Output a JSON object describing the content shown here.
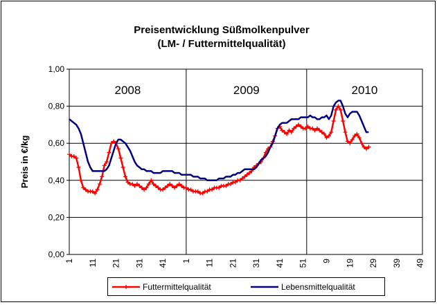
{
  "chart_data": {
    "type": "line",
    "title": "Preisentwicklung Süßmolkenpulver",
    "subtitle": "(LM- / Futtermittelqualität)",
    "y_label": "Preis in €/kg",
    "annotations": [
      "2008",
      "2009",
      "2010"
    ],
    "categories": [
      "1",
      null,
      null,
      null,
      null,
      null,
      null,
      null,
      null,
      null,
      "11",
      null,
      null,
      null,
      null,
      null,
      null,
      null,
      null,
      null,
      "21",
      null,
      null,
      null,
      null,
      null,
      null,
      null,
      null,
      null,
      "31",
      null,
      null,
      null,
      null,
      null,
      null,
      null,
      null,
      null,
      "41",
      null,
      null,
      null,
      null,
      null,
      null,
      null,
      null,
      null,
      "1",
      null,
      null,
      null,
      null,
      null,
      null,
      null,
      null,
      null,
      "11",
      null,
      null,
      null,
      null,
      null,
      null,
      null,
      null,
      null,
      "21",
      null,
      null,
      null,
      null,
      null,
      null,
      null,
      null,
      null,
      "31",
      null,
      null,
      null,
      null,
      null,
      null,
      null,
      null,
      null,
      "41",
      null,
      null,
      null,
      null,
      null,
      null,
      null,
      null,
      null,
      "51",
      null,
      null,
      null,
      null,
      null,
      null,
      null,
      null,
      null,
      "9",
      null,
      null,
      null,
      null,
      null,
      null,
      null,
      null,
      null,
      "19",
      null,
      null,
      null,
      null,
      null,
      null,
      null,
      null,
      null,
      "29",
      null,
      null,
      null,
      null,
      null,
      null,
      null,
      null,
      null,
      "39",
      null,
      null,
      null,
      null,
      null,
      null,
      null,
      null,
      null,
      "49",
      null
    ],
    "series": [
      {
        "name": "Futtermittelqualität",
        "color": "#ff0000",
        "marker": "plus",
        "values": [
          0.54,
          0.53,
          0.53,
          0.52,
          0.47,
          0.4,
          0.36,
          0.35,
          0.34,
          0.34,
          0.34,
          0.33,
          0.35,
          0.38,
          0.42,
          0.48,
          0.5,
          0.55,
          0.6,
          0.61,
          0.6,
          0.57,
          0.52,
          0.47,
          0.42,
          0.39,
          0.38,
          0.38,
          0.37,
          0.38,
          0.37,
          0.36,
          0.35,
          0.36,
          0.38,
          0.4,
          0.38,
          0.37,
          0.36,
          0.35,
          0.35,
          0.36,
          0.37,
          0.38,
          0.37,
          0.36,
          0.37,
          0.38,
          0.37,
          0.36,
          0.36,
          0.35,
          0.35,
          0.34,
          0.34,
          0.34,
          0.33,
          0.33,
          0.34,
          0.34,
          0.35,
          0.35,
          0.36,
          0.36,
          0.36,
          0.37,
          0.37,
          0.37,
          0.38,
          0.38,
          0.39,
          0.39,
          0.4,
          0.4,
          0.41,
          0.42,
          0.43,
          0.44,
          0.45,
          0.47,
          0.48,
          0.49,
          0.5,
          0.52,
          0.55,
          0.57,
          0.58,
          0.61,
          0.64,
          0.68,
          0.69,
          0.67,
          0.66,
          0.65,
          0.67,
          0.66,
          0.68,
          0.69,
          0.7,
          0.69,
          0.68,
          0.68,
          0.69,
          0.68,
          0.68,
          0.67,
          0.68,
          0.67,
          0.66,
          0.65,
          0.63,
          0.64,
          0.66,
          0.72,
          0.78,
          0.8,
          0.78,
          0.72,
          0.66,
          0.61,
          0.6,
          0.62,
          0.64,
          0.65,
          0.63,
          0.6,
          0.58,
          0.57,
          0.58,
          null,
          null,
          null,
          null,
          null,
          null,
          null,
          null,
          null,
          null,
          null,
          null,
          null,
          null,
          null,
          null,
          null,
          null,
          null,
          null,
          null,
          null,
          null
        ]
      },
      {
        "name": "Lebensmittelqualität",
        "color": "#000080",
        "marker": "none",
        "values": [
          0.73,
          0.72,
          0.71,
          0.7,
          0.68,
          0.65,
          0.6,
          0.55,
          0.5,
          0.47,
          0.45,
          0.45,
          0.45,
          0.45,
          0.45,
          0.45,
          0.46,
          0.48,
          0.52,
          0.56,
          0.6,
          0.62,
          0.62,
          0.61,
          0.6,
          0.58,
          0.56,
          0.53,
          0.5,
          0.48,
          0.47,
          0.46,
          0.46,
          0.45,
          0.45,
          0.45,
          0.44,
          0.44,
          0.44,
          0.44,
          0.45,
          0.45,
          0.45,
          0.45,
          0.45,
          0.44,
          0.44,
          0.44,
          0.43,
          0.43,
          0.43,
          0.43,
          0.43,
          0.42,
          0.42,
          0.42,
          0.41,
          0.41,
          0.41,
          0.4,
          0.4,
          0.4,
          0.4,
          0.4,
          0.41,
          0.41,
          0.41,
          0.42,
          0.42,
          0.42,
          0.43,
          0.43,
          0.44,
          0.44,
          0.45,
          0.46,
          0.46,
          0.46,
          0.46,
          0.46,
          0.47,
          0.49,
          0.51,
          0.52,
          0.53,
          0.55,
          0.58,
          0.6,
          0.64,
          0.68,
          0.7,
          0.71,
          0.71,
          0.71,
          0.72,
          0.73,
          0.73,
          0.73,
          0.73,
          0.74,
          0.74,
          0.74,
          0.74,
          0.75,
          0.74,
          0.74,
          0.73,
          0.73,
          0.74,
          0.74,
          0.75,
          0.73,
          0.75,
          0.8,
          0.82,
          0.83,
          0.83,
          0.8,
          0.76,
          0.74,
          0.76,
          0.77,
          0.77,
          0.77,
          0.75,
          0.72,
          0.69,
          0.66,
          0.66,
          null,
          null,
          null,
          null,
          null,
          null,
          null,
          null,
          null,
          null,
          null,
          null,
          null,
          null,
          null,
          null,
          null,
          null,
          null,
          null,
          null,
          null,
          null
        ]
      }
    ],
    "ylim": [
      0,
      1
    ],
    "yticks": [
      {
        "value": 0,
        "label": "0,00"
      },
      {
        "value": 0.2,
        "label": "0,20"
      },
      {
        "value": 0.4,
        "label": "0,40"
      },
      {
        "value": 0.6,
        "label": "0,60"
      },
      {
        "value": 0.8,
        "label": "0,80"
      },
      {
        "value": 1,
        "label": "1,00"
      }
    ],
    "grid": true,
    "legend": "bottom"
  }
}
